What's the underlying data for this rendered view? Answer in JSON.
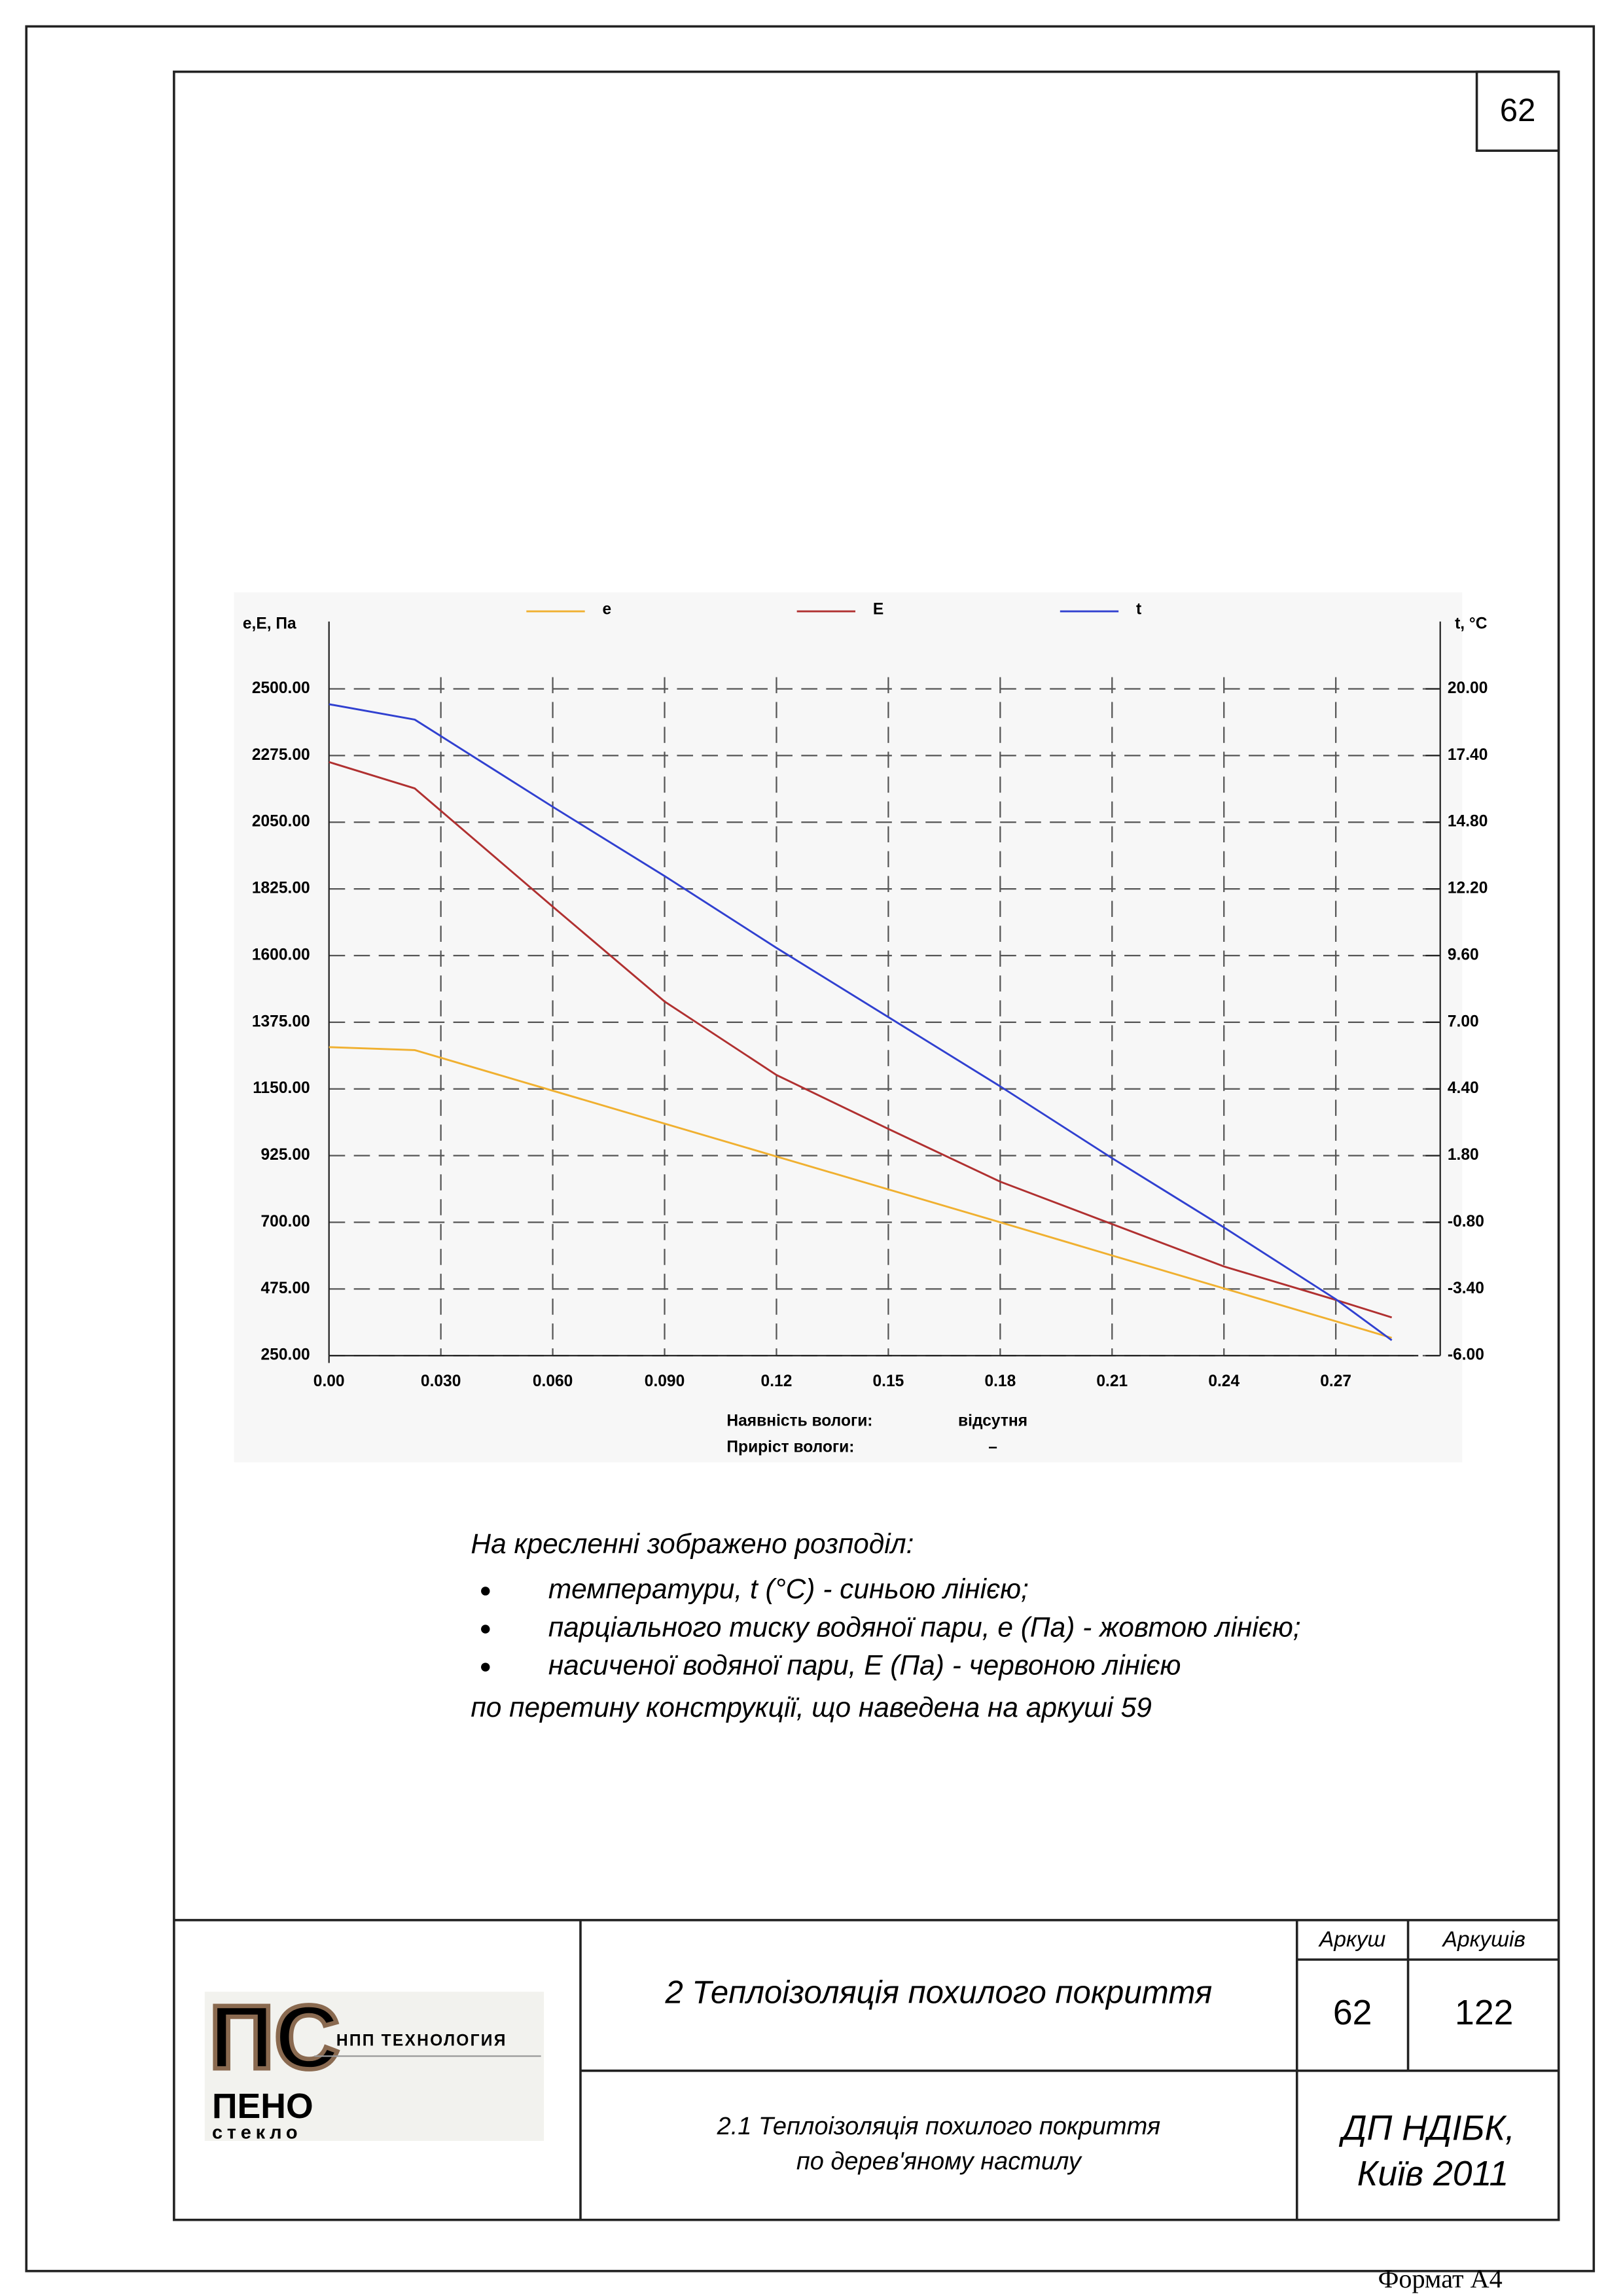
{
  "page_number": "62",
  "chart_data": {
    "type": "line",
    "y_label": "e,E, Па",
    "y2_label": "t, °C",
    "x": [
      0,
      0.023,
      0.06,
      0.09,
      0.12,
      0.15,
      0.18,
      0.21,
      0.24,
      0.27,
      0.285
    ],
    "series": [
      {
        "name": "e",
        "color": "#f0b030",
        "values": [
          1291,
          1281,
          1144,
          1033,
          922,
          811,
          700,
          588,
          477,
          366,
          310
        ]
      },
      {
        "name": "E",
        "color": "#b03030",
        "values": [
          2253,
          2164,
          1765,
          1445,
          1197,
          1015,
          837,
          694,
          551,
          438,
          379
        ]
      },
      {
        "name": "t",
        "color": "#3040d0",
        "axis": "y2",
        "values": [
          19.4,
          18.8,
          15.4,
          12.7,
          9.9,
          7.2,
          4.5,
          1.7,
          -1.0,
          -3.8,
          -5.4
        ]
      }
    ],
    "xlim": [
      0,
      0.298
    ],
    "xticks": [
      {
        "value": 0,
        "label": "0.00"
      },
      {
        "value": 0.03,
        "label": "0.030"
      },
      {
        "value": 0.06,
        "label": "0.060"
      },
      {
        "value": 0.09,
        "label": "0.090"
      },
      0.12,
      0.15,
      0.18,
      0.21,
      0.24,
      0.27
    ],
    "ylim": [
      250,
      2500
    ],
    "yticks": [
      {
        "value": 250,
        "label": "250.00"
      },
      {
        "value": 475,
        "label": "475.00"
      },
      {
        "value": 700,
        "label": "700.00"
      },
      {
        "value": 925,
        "label": "925.00"
      },
      {
        "value": 1150,
        "label": "1150.00"
      },
      {
        "value": 1375,
        "label": "1375.00"
      },
      {
        "value": 1600,
        "label": "1600.00"
      },
      {
        "value": 1825,
        "label": "1825.00"
      },
      {
        "value": 2050,
        "label": "2050.00"
      },
      {
        "value": 2275,
        "label": "2275.00"
      },
      {
        "value": 2500,
        "label": "2500.00"
      }
    ],
    "y2lim": [
      -6,
      20
    ],
    "y2ticks": [
      {
        "value": -6,
        "label": "-6.00"
      },
      {
        "value": -3.4,
        "label": "-3.40"
      },
      {
        "value": -0.8,
        "label": "-0.80"
      },
      {
        "value": 1.8,
        "label": "1.80"
      },
      {
        "value": 4.4,
        "label": "4.40"
      },
      {
        "value": 7,
        "label": "7.00"
      },
      {
        "value": 9.6,
        "label": "9.60"
      },
      {
        "value": 12.2,
        "label": "12.20"
      },
      {
        "value": 14.8,
        "label": "14.80"
      },
      {
        "value": 17.4,
        "label": "17.40"
      },
      {
        "value": 20,
        "label": "20.00"
      }
    ],
    "grid": true,
    "notes": [
      [
        "Наявність вологи:",
        "відсутня"
      ],
      [
        "Приріст вологи:",
        "–"
      ]
    ]
  },
  "caption": {
    "intro": "На кресленні зображено розподіл:",
    "items": [
      "температури, t (°C) - синьою лінією;",
      "парціального тиску водяної пари, е (Па) - жовтою лінією;",
      "насиченої водяної пари, Е (Па) - червоною лінією"
    ],
    "outro": "по перетину конструкції, що наведена на аркуші 59"
  },
  "title_block": {
    "sheet_label": "Аркуш",
    "sheets_label": "Аркушів",
    "sheet": "62",
    "sheets": "122",
    "title": "2 Теплоізоляція похилого покриття",
    "subtitle": [
      "2.1 Теплоізоляція похилого покриття",
      "по дерев'яному настилу"
    ],
    "org": [
      "ДП НДІБК,",
      "Київ 2011"
    ]
  },
  "logo": {
    "mark": "ПС",
    "company": "НПП ТЕХНОЛОГИЯ",
    "brand": "ПЕНО",
    "brand_sub": "стекло"
  },
  "format": "Формат А4"
}
